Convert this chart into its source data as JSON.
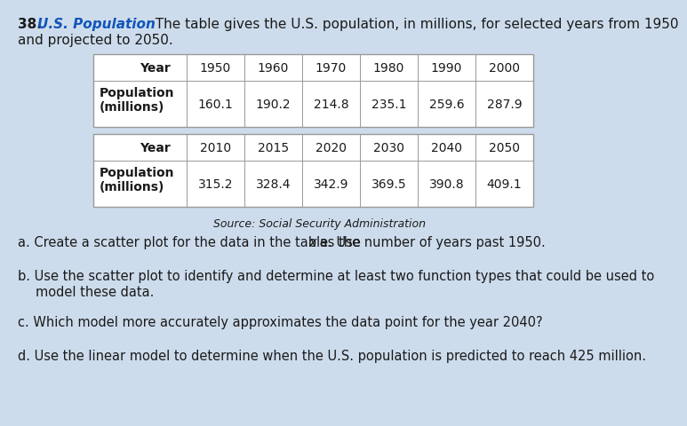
{
  "problem_number": "38.",
  "title_bold_italic": "U.S. Population",
  "title_rest": "  The table gives the U.S. population, in millions, for selected years from 1950",
  "title_line2": "and projected to 2050.",
  "table1_headers": [
    "Year",
    "1950",
    "1960",
    "1970",
    "1980",
    "1990",
    "2000"
  ],
  "table1_row2_label": "Population\n(millions)",
  "table1_row2_values": [
    "160.1",
    "190.2",
    "214.8",
    "235.1",
    "259.6",
    "287.9"
  ],
  "table2_headers": [
    "Year",
    "2010",
    "2015",
    "2020",
    "2030",
    "2040",
    "2050"
  ],
  "table2_row2_label": "Population\n(millions)",
  "table2_row2_values": [
    "315.2",
    "328.4",
    "342.9",
    "369.5",
    "390.8",
    "409.1"
  ],
  "source": "Source: Social Security Administration",
  "qa": "a. Create a scatter plot for the data in the table. Use ",
  "qa_x": "x",
  "qa_end": " as the number of years past 1950.",
  "qb1": "b. Use the scatter plot to identify and determine at least two function types that could be used to",
  "qb2": "   model these data.",
  "qc": "c. Which model more accurately approximates the data point for the year 2040?",
  "qd": "d. Use the linear model to determine when the U.S. population is predicted to reach 425 million.",
  "bg_color": "#cddcec",
  "table_bg": "#ffffff",
  "border_color": "#999999",
  "text_color": "#1a1a1a",
  "title_blue": "#1155bb",
  "font_size_title": 11,
  "font_size_table": 10,
  "font_size_q": 10.5,
  "font_size_source": 9
}
